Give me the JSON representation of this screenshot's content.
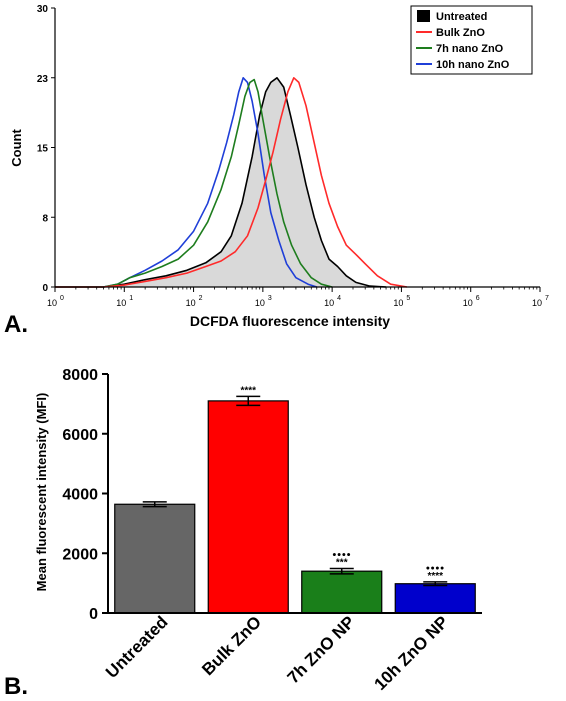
{
  "panel_labels": {
    "a": "A.",
    "b": "B."
  },
  "chart_data": [
    {
      "type": "area",
      "xlabel": "DCFDA fluorescence intensity",
      "ylabel": "Count",
      "xscale": "log",
      "xlim": [
        1,
        10000000
      ],
      "ylim": [
        0,
        30
      ],
      "x_ticks": [
        {
          "base": "10",
          "exp": "0"
        },
        {
          "base": "10",
          "exp": "1"
        },
        {
          "base": "10",
          "exp": "2"
        },
        {
          "base": "10",
          "exp": "3"
        },
        {
          "base": "10",
          "exp": "4"
        },
        {
          "base": "10",
          "exp": "5"
        },
        {
          "base": "10",
          "exp": "6"
        },
        {
          "base": "10",
          "exp": "7"
        }
      ],
      "y_ticks": [
        "0",
        "8",
        "15",
        "23",
        "30"
      ],
      "y_tick_values": [
        0,
        7.5,
        15,
        22.5,
        30
      ],
      "legend_position": "top-right",
      "series": [
        {
          "name": "Untreated",
          "color": "#000000",
          "fill": "#d9d9d9",
          "points": [
            [
              1,
              0
            ],
            [
              5,
              0
            ],
            [
              10,
              0.3
            ],
            [
              20,
              0.8
            ],
            [
              40,
              1.2
            ],
            [
              80,
              1.8
            ],
            [
              150,
              2.6
            ],
            [
              250,
              3.8
            ],
            [
              350,
              5.5
            ],
            [
              500,
              9
            ],
            [
              700,
              14
            ],
            [
              900,
              18.5
            ],
            [
              1100,
              21
            ],
            [
              1300,
              22
            ],
            [
              1600,
              22.5
            ],
            [
              2000,
              21.5
            ],
            [
              2500,
              18.5
            ],
            [
              3200,
              15
            ],
            [
              4200,
              11
            ],
            [
              5500,
              7.5
            ],
            [
              7000,
              5
            ],
            [
              9000,
              3
            ],
            [
              12000,
              2.2
            ],
            [
              16000,
              1.2
            ],
            [
              22000,
              0.5
            ],
            [
              35000,
              0.1
            ],
            [
              60000,
              0
            ]
          ]
        },
        {
          "name": "Bulk ZnO",
          "color": "#ff2a2a",
          "points": [
            [
              1,
              0
            ],
            [
              5,
              0
            ],
            [
              10,
              0.2
            ],
            [
              20,
              0.6
            ],
            [
              40,
              1
            ],
            [
              80,
              1.5
            ],
            [
              150,
              2.2
            ],
            [
              250,
              2.8
            ],
            [
              400,
              3.8
            ],
            [
              600,
              5.5
            ],
            [
              850,
              8.5
            ],
            [
              1100,
              11.5
            ],
            [
              1400,
              14.5
            ],
            [
              1800,
              18
            ],
            [
              2300,
              21
            ],
            [
              2800,
              22.5
            ],
            [
              3300,
              22
            ],
            [
              4200,
              19.5
            ],
            [
              5500,
              15.5
            ],
            [
              7000,
              12
            ],
            [
              9000,
              9
            ],
            [
              12000,
              6.5
            ],
            [
              16000,
              4.5
            ],
            [
              22000,
              3.5
            ],
            [
              30000,
              2.5
            ],
            [
              45000,
              1.2
            ],
            [
              70000,
              0.3
            ],
            [
              120000,
              0
            ]
          ]
        },
        {
          "name": "7h nano ZnO",
          "color": "#1e7d1e",
          "points": [
            [
              1,
              0
            ],
            [
              5,
              0
            ],
            [
              8,
              0.3
            ],
            [
              12,
              1
            ],
            [
              20,
              1.5
            ],
            [
              35,
              2.2
            ],
            [
              60,
              3
            ],
            [
              100,
              4.5
            ],
            [
              160,
              7
            ],
            [
              250,
              10.5
            ],
            [
              350,
              14
            ],
            [
              450,
              17.5
            ],
            [
              550,
              20.5
            ],
            [
              650,
              22
            ],
            [
              750,
              22.3
            ],
            [
              850,
              21
            ],
            [
              1000,
              18
            ],
            [
              1250,
              14
            ],
            [
              1600,
              10
            ],
            [
              2000,
              7
            ],
            [
              2600,
              4.5
            ],
            [
              3500,
              2.5
            ],
            [
              5000,
              1
            ],
            [
              7000,
              0.3
            ],
            [
              10000,
              0
            ]
          ]
        },
        {
          "name": "10h nano ZnO",
          "color": "#1f3fd8",
          "points": [
            [
              1,
              0
            ],
            [
              5,
              0
            ],
            [
              8,
              0.3
            ],
            [
              12,
              1
            ],
            [
              20,
              1.8
            ],
            [
              35,
              2.8
            ],
            [
              60,
              4
            ],
            [
              100,
              6
            ],
            [
              160,
              9
            ],
            [
              230,
              12.5
            ],
            [
              300,
              15.5
            ],
            [
              380,
              18.5
            ],
            [
              450,
              21
            ],
            [
              520,
              22.5
            ],
            [
              600,
              22
            ],
            [
              700,
              20
            ],
            [
              850,
              16.5
            ],
            [
              1050,
              12
            ],
            [
              1300,
              8
            ],
            [
              1700,
              5
            ],
            [
              2200,
              2.5
            ],
            [
              3000,
              1
            ],
            [
              4500,
              0.3
            ],
            [
              6000,
              0
            ]
          ]
        }
      ]
    },
    {
      "type": "bar",
      "ylabel": "Mean fluorescent intensity (MFI)",
      "ylim": [
        0,
        8000
      ],
      "y_ticks": [
        "0",
        "2000",
        "4000",
        "6000",
        "8000"
      ],
      "y_tick_values": [
        0,
        2000,
        4000,
        6000,
        8000
      ],
      "categories": [
        "Untreated",
        "Bulk ZnO",
        "7h ZnO NP",
        "10h ZnO NP"
      ],
      "values": [
        3640,
        7100,
        1400,
        980
      ],
      "errors": [
        80,
        150,
        90,
        60
      ],
      "colors": [
        "#666666",
        "#ff0000",
        "#1a7f1a",
        "#0000cc"
      ],
      "annotations": [
        {
          "category": "Bulk ZnO",
          "lines": [
            "****"
          ]
        },
        {
          "category": "7h ZnO NP",
          "lines": [
            "●●●●",
            "***"
          ]
        },
        {
          "category": "10h ZnO NP",
          "lines": [
            "●●●●",
            "****"
          ]
        }
      ]
    }
  ]
}
